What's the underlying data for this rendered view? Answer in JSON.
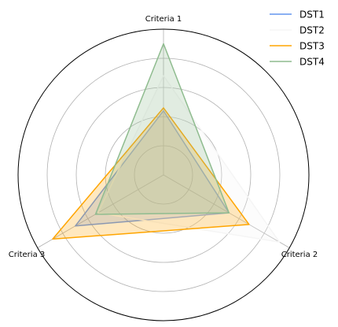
{
  "chart_data": {
    "type": "radar",
    "title": "",
    "axes": [
      "Criteria 1",
      "Criteria 2",
      "Criteria 3"
    ],
    "rlim": [
      0,
      5
    ],
    "rgrid": [
      1,
      2,
      3,
      4
    ],
    "grid": true,
    "legend_position": "top-right",
    "series": [
      {
        "name": "DST1",
        "values": [
          2.2,
          2.6,
          3.5
        ],
        "color": "#6495ed"
      },
      {
        "name": "DST2",
        "values": [
          3.4,
          4.6,
          2.6
        ],
        "color": "#f5f5f5"
      },
      {
        "name": "DST3",
        "values": [
          2.3,
          3.4,
          4.4
        ],
        "color": "#ffa500"
      },
      {
        "name": "DST4",
        "values": [
          4.5,
          2.6,
          2.7
        ],
        "color": "#8fbc8f"
      }
    ]
  }
}
